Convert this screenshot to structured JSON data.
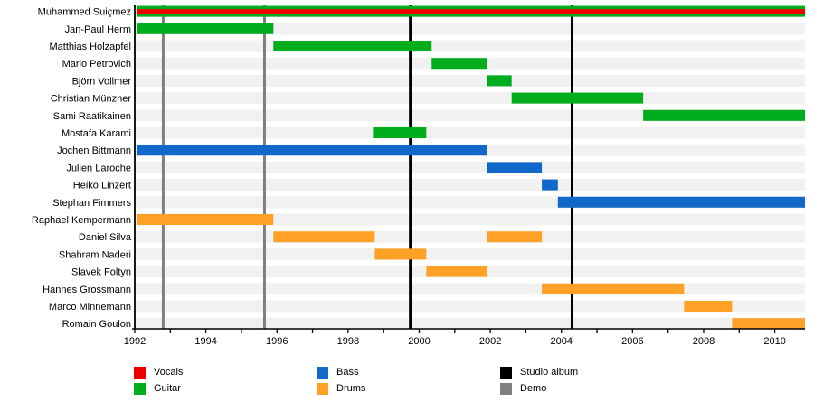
{
  "chart_data": {
    "type": "timeline",
    "title": "",
    "x_axis": {
      "min": 1992,
      "max": 2010.85,
      "tick_labels": [
        "1992",
        "1994",
        "1996",
        "1998",
        "2000",
        "2002",
        "2004",
        "2006",
        "2008",
        "2010"
      ],
      "minor_tick_interval": 1
    },
    "rows": [
      {
        "name": "Muhammed Suiçmez",
        "roles": [
          "guitar",
          "vocals"
        ],
        "periods": [
          [
            1992.05,
            2010.85
          ]
        ]
      },
      {
        "name": "Jan-Paul Herm",
        "roles": [
          "guitar"
        ],
        "periods": [
          [
            1992.05,
            1995.9
          ]
        ]
      },
      {
        "name": "Matthias Holzapfel",
        "roles": [
          "guitar"
        ],
        "periods": [
          [
            1995.9,
            2000.35
          ]
        ]
      },
      {
        "name": "Mario Petrovich",
        "roles": [
          "guitar"
        ],
        "periods": [
          [
            2000.35,
            2001.9
          ]
        ]
      },
      {
        "name": "Björn Vollmer",
        "roles": [
          "guitar"
        ],
        "periods": [
          [
            2001.9,
            2002.6
          ]
        ]
      },
      {
        "name": "Christian Münzner",
        "roles": [
          "guitar"
        ],
        "periods": [
          [
            2002.6,
            2006.3
          ]
        ]
      },
      {
        "name": "Sami Raatikainen",
        "roles": [
          "guitar"
        ],
        "periods": [
          [
            2006.3,
            2010.85
          ]
        ]
      },
      {
        "name": "Mostafa Karami",
        "roles": [
          "guitar"
        ],
        "periods": [
          [
            1998.7,
            2000.2
          ]
        ]
      },
      {
        "name": "Jochen Bittmann",
        "roles": [
          "bass"
        ],
        "periods": [
          [
            1992.05,
            2001.9
          ]
        ]
      },
      {
        "name": "Julien Laroche",
        "roles": [
          "bass"
        ],
        "periods": [
          [
            2001.9,
            2003.45
          ]
        ]
      },
      {
        "name": "Heiko Linzert",
        "roles": [
          "bass"
        ],
        "periods": [
          [
            2003.45,
            2003.9
          ]
        ]
      },
      {
        "name": "Stephan Fimmers",
        "roles": [
          "bass"
        ],
        "periods": [
          [
            2003.9,
            2010.85
          ]
        ]
      },
      {
        "name": "Raphael Kempermann",
        "roles": [
          "drums"
        ],
        "periods": [
          [
            1992.05,
            1995.9
          ]
        ]
      },
      {
        "name": "Daniel Silva",
        "roles": [
          "drums"
        ],
        "periods": [
          [
            1995.9,
            1998.75
          ],
          [
            2001.9,
            2003.45
          ]
        ]
      },
      {
        "name": "Shahram Naderi",
        "roles": [
          "drums"
        ],
        "periods": [
          [
            1998.75,
            2000.2
          ]
        ]
      },
      {
        "name": "Slavek Foltyn",
        "roles": [
          "drums"
        ],
        "periods": [
          [
            2000.2,
            2001.9
          ]
        ]
      },
      {
        "name": "Hannes Grossmann",
        "roles": [
          "drums"
        ],
        "periods": [
          [
            2003.45,
            2007.45
          ]
        ]
      },
      {
        "name": "Marco Minnemann",
        "roles": [
          "drums"
        ],
        "periods": [
          [
            2007.45,
            2008.8
          ]
        ]
      },
      {
        "name": "Romain Goulon",
        "roles": [
          "drums"
        ],
        "periods": [
          [
            2008.8,
            2010.85
          ]
        ]
      }
    ],
    "events": {
      "studio_albums": [
        1999.75,
        2004.3
      ],
      "demos": [
        1992.8,
        1995.65
      ]
    },
    "colors": {
      "vocals": "#ee0000",
      "guitar": "#00ad1d",
      "bass": "#1168c8",
      "drums": "#ffa127",
      "studio_album": "#000000",
      "demo": "#7f7f7f",
      "row_stripe": "#f1f1f1",
      "axis": "#000000"
    },
    "legend": {
      "position": "bottom",
      "items": [
        {
          "label": "Vocals",
          "color_key": "vocals"
        },
        {
          "label": "Guitar",
          "color_key": "guitar"
        },
        {
          "label": "Bass",
          "color_key": "bass"
        },
        {
          "label": "Drums",
          "color_key": "drums"
        },
        {
          "label": "Studio album",
          "color_key": "studio_album"
        },
        {
          "label": "Demo",
          "color_key": "demo"
        }
      ]
    }
  }
}
